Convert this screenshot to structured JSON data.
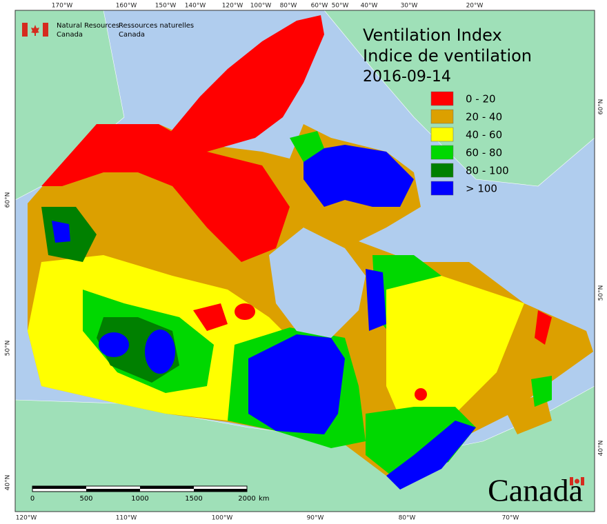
{
  "header": {
    "org_en": [
      "Natural Resources",
      "Canada"
    ],
    "org_fr": [
      "Ressources naturelles",
      "Canada"
    ]
  },
  "title": {
    "line1": "Ventilation Index",
    "line2": "Indice de ventilation",
    "date": "2016-09-14"
  },
  "legend": [
    {
      "label": "0 - 20",
      "color": "#ff0000"
    },
    {
      "label": "20 - 40",
      "color": "#dca000"
    },
    {
      "label": "40 - 60",
      "color": "#ffff00"
    },
    {
      "label": "60 - 80",
      "color": "#00d800"
    },
    {
      "label": "80 - 100",
      "color": "#008000"
    },
    {
      "label": "> 100",
      "color": "#0000ff"
    }
  ],
  "graticule": {
    "top": [
      "170°W",
      "160°W",
      "150°W",
      "140°W",
      "120°W",
      "100°W",
      "80°W",
      "60°W",
      "50°W",
      "40°W",
      "30°W",
      "20°W"
    ],
    "bottom": [
      "120°W",
      "110°W",
      "100°W",
      "90°W",
      "80°W",
      "70°W"
    ],
    "left": [
      "60°N",
      "50°N",
      "40°N"
    ],
    "right": [
      "60°N",
      "50°N",
      "40°N"
    ]
  },
  "scale_bar": {
    "ticks": [
      "0",
      "500",
      "1000",
      "1500",
      "2000"
    ],
    "unit": "km"
  },
  "wordmark": "Canada"
}
